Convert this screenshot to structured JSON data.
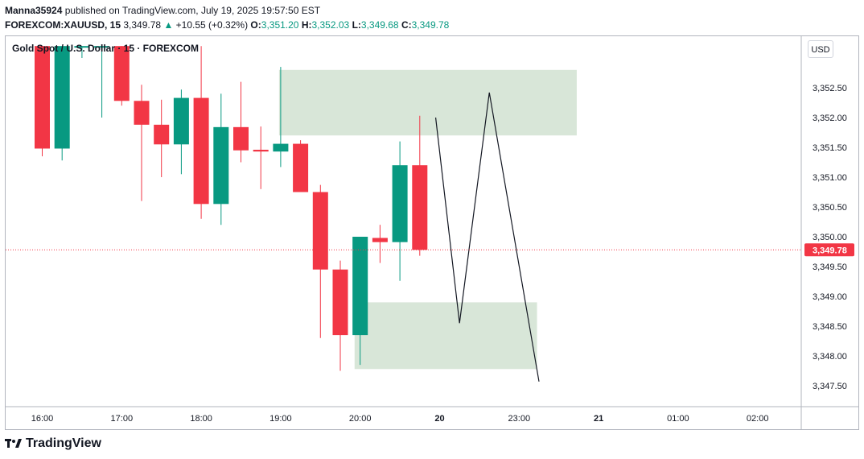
{
  "header": {
    "user": "Manna35924",
    "published": "published on TradingView.com, July 19, 2025 19:57:50 EST",
    "symbol": "FOREXCOM:XAUUSD, 15",
    "last": "3,349.78",
    "change": "+10.55 (+0.32%)",
    "o_label": "O:",
    "o_value": "3,351.20",
    "h_label": "H:",
    "h_value": "3,352.03",
    "l_label": "L:",
    "l_value": "3,349.68",
    "c_label": "C:",
    "c_value": "3,349.78"
  },
  "chart_title": "Gold Spot / U.S. Dollar · 15 · FOREXCOM",
  "currency_button": "USD",
  "footer_brand": "TradingView",
  "colors": {
    "up": "#089981",
    "down": "#f23645",
    "zone": "#d6e5d6",
    "text": "#131722"
  },
  "chart_data": {
    "type": "candlestick",
    "ylim": [
      3347.2,
      3353.2
    ],
    "y_ticks": [
      {
        "value": 3352.5,
        "label": "3,352.50"
      },
      {
        "value": 3352.0,
        "label": "3,352.00"
      },
      {
        "value": 3351.5,
        "label": "3,351.50"
      },
      {
        "value": 3351.0,
        "label": "3,351.00"
      },
      {
        "value": 3350.5,
        "label": "3,350.50"
      },
      {
        "value": 3350.0,
        "label": "3,350.00"
      },
      {
        "value": 3349.5,
        "label": "3,349.50"
      },
      {
        "value": 3349.0,
        "label": "3,349.00"
      },
      {
        "value": 3348.5,
        "label": "3,348.50"
      },
      {
        "value": 3348.0,
        "label": "3,348.00"
      },
      {
        "value": 3347.5,
        "label": "3,347.50"
      }
    ],
    "x_ticks": [
      "16:00",
      "17:00",
      "18:00",
      "19:00",
      "20:00",
      "20",
      "23:00",
      "21",
      "01:00",
      "02:00"
    ],
    "last_price": {
      "value": 3349.78,
      "label": "3,349.78"
    },
    "candles": [
      {
        "o": 3353.2,
        "h": 3353.2,
        "l": 3351.35,
        "c": 3351.48
      },
      {
        "o": 3351.48,
        "h": 3353.2,
        "l": 3351.28,
        "c": 3353.2
      },
      {
        "o": 3353.2,
        "h": 3353.2,
        "l": 3353.0,
        "c": 3353.2
      },
      {
        "o": 3353.2,
        "h": 3353.2,
        "l": 3352.0,
        "c": 3353.2
      },
      {
        "o": 3353.2,
        "h": 3353.2,
        "l": 3352.2,
        "c": 3352.28
      },
      {
        "o": 3352.28,
        "h": 3352.55,
        "l": 3350.6,
        "c": 3351.88
      },
      {
        "o": 3351.88,
        "h": 3352.3,
        "l": 3351.0,
        "c": 3351.55
      },
      {
        "o": 3351.55,
        "h": 3352.47,
        "l": 3351.05,
        "c": 3352.33
      },
      {
        "o": 3352.33,
        "h": 3353.2,
        "l": 3350.3,
        "c": 3350.55
      },
      {
        "o": 3350.55,
        "h": 3352.4,
        "l": 3350.2,
        "c": 3351.84
      },
      {
        "o": 3351.84,
        "h": 3352.6,
        "l": 3351.25,
        "c": 3351.45
      },
      {
        "o": 3351.46,
        "h": 3351.85,
        "l": 3350.8,
        "c": 3351.43
      },
      {
        "o": 3351.43,
        "h": 3352.85,
        "l": 3351.17,
        "c": 3351.56
      },
      {
        "o": 3351.56,
        "h": 3351.62,
        "l": 3350.75,
        "c": 3350.75
      },
      {
        "o": 3350.75,
        "h": 3350.87,
        "l": 3348.3,
        "c": 3349.45
      },
      {
        "o": 3349.45,
        "h": 3349.6,
        "l": 3347.75,
        "c": 3348.35
      },
      {
        "o": 3348.35,
        "h": 3350.0,
        "l": 3347.85,
        "c": 3350.0
      },
      {
        "o": 3349.98,
        "h": 3350.2,
        "l": 3349.56,
        "c": 3349.91
      },
      {
        "o": 3349.91,
        "h": 3351.6,
        "l": 3349.26,
        "c": 3351.2
      },
      {
        "o": 3351.2,
        "h": 3352.03,
        "l": 3349.68,
        "c": 3349.78
      }
    ],
    "zones": [
      {
        "from_index": 12,
        "to_index": 26.9,
        "top": 3352.8,
        "bottom": 3351.7
      },
      {
        "from_index": 15.8,
        "to_index": 24.9,
        "top": 3348.9,
        "bottom": 3347.78
      }
    ],
    "projection": [
      {
        "i": 19.8,
        "v": 3352.0
      },
      {
        "i": 21.0,
        "v": 3348.55
      },
      {
        "i": 22.5,
        "v": 3352.42
      },
      {
        "i": 25.0,
        "v": 3347.57
      }
    ]
  }
}
